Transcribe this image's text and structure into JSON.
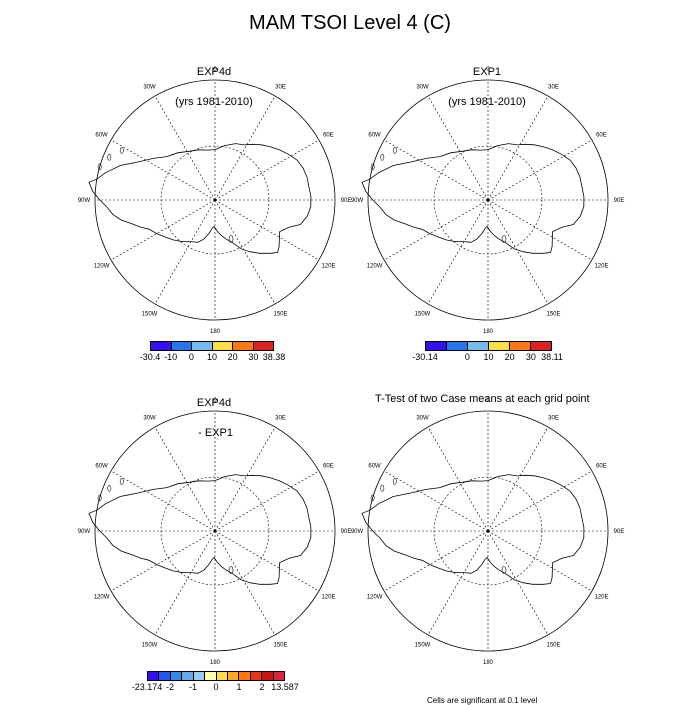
{
  "title": "MAM TSOI Level 4 (C)",
  "panels": [
    {
      "id": "exp4d",
      "title_line1": "EXP4d",
      "title_line2": "(yrs 1981-2010)"
    },
    {
      "id": "exp1",
      "title_line1": "EXP1",
      "title_line2": "(yrs 1981-2010)"
    },
    {
      "id": "diff",
      "title_line1": "EXP4d",
      "title_line2": " - EXP1"
    },
    {
      "id": "ttest",
      "title_line1": "T-Test of two Case means at each grid point",
      "title_line2": ""
    }
  ],
  "map_labels": [
    "0",
    "30E",
    "60E",
    "90E",
    "120E",
    "150E",
    "180",
    "150W",
    "120W",
    "90W",
    "60W",
    "30W"
  ],
  "colorbars": {
    "exp4d": {
      "colors": [
        "#3311ee",
        "#2277ee",
        "#77bbee",
        "#ffdd44",
        "#ff7711",
        "#dd2222"
      ],
      "labels": [
        "-30.4",
        "-10",
        "0",
        "10",
        "20",
        "30",
        "38.38"
      ]
    },
    "exp1": {
      "colors": [
        "#3311ee",
        "#2277ee",
        "#77bbee",
        "#ffdd44",
        "#ff7711",
        "#dd2222"
      ],
      "labels": [
        "-30.14",
        "",
        "0",
        "10",
        "20",
        "30",
        "38.11"
      ]
    },
    "diff": {
      "colors": [
        "#3311ee",
        "#2255ee",
        "#3388ee",
        "#66aaee",
        "#99ccee",
        "#ffffaa",
        "#ffdd44",
        "#ffaa22",
        "#ff7711",
        "#ee3311",
        "#cc1111",
        "#dd2244"
      ],
      "labels": [
        "-23.174",
        "-2",
        "-1",
        "0",
        "1",
        "2",
        "13.587"
      ]
    }
  },
  "footnote": "Cells are significant at 0.1 level"
}
